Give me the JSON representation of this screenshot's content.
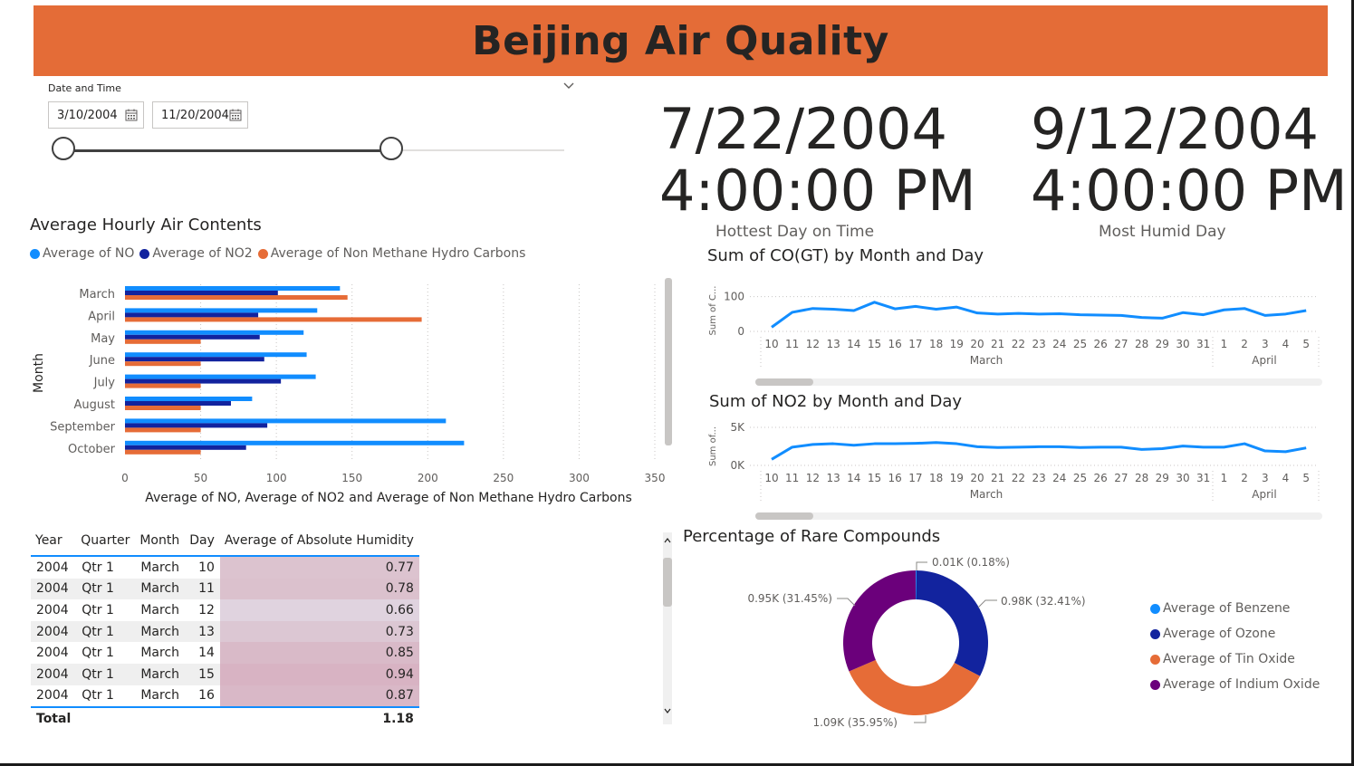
{
  "header": {
    "title": "Beijing Air Quality"
  },
  "slicer": {
    "title": "Date and Time",
    "start_date": "3/10/2004",
    "end_date": "11/20/2004",
    "range_start_fraction": 0.0,
    "range_end_fraction": 0.655
  },
  "cards": [
    {
      "date": "7/22/2004",
      "time": "4:00:00 PM",
      "label": "Hottest Day on Time"
    },
    {
      "date": "9/12/2004",
      "time": "4:00:00 PM",
      "label": "Most Humid Day"
    }
  ],
  "colors": {
    "banner": "#E46C37",
    "no": "#118DFF",
    "no2": "#12239E",
    "nmhc": "#E66C37",
    "indium": "#6B007B"
  },
  "bar_chart": {
    "title": "Average Hourly Air Contents",
    "legend": [
      "Average of NO",
      "Average of NO2",
      "Average of Non Methane Hydro Carbons"
    ],
    "ylabel": "Month",
    "xlabel": "Average of NO, Average of NO2 and Average of Non Methane Hydro Carbons",
    "xticks": [
      "0",
      "50",
      "100",
      "150",
      "200",
      "250",
      "300",
      "350"
    ]
  },
  "co_chart": {
    "title": "Sum of CO(GT) by Month and Day",
    "ylabel": "Sum of C...",
    "yticks": [
      "100",
      "0"
    ],
    "days": [
      "10",
      "11",
      "12",
      "13",
      "14",
      "15",
      "16",
      "17",
      "18",
      "19",
      "20",
      "21",
      "22",
      "23",
      "24",
      "25",
      "26",
      "27",
      "28",
      "29",
      "30",
      "31",
      "1",
      "2",
      "3",
      "4",
      "5"
    ],
    "months": [
      "March",
      "April"
    ]
  },
  "no2_chart": {
    "title": "Sum of NO2 by Month and Day",
    "ylabel": "Sum of...",
    "yticks": [
      "5K",
      "0K"
    ],
    "days": [
      "10",
      "11",
      "12",
      "13",
      "14",
      "15",
      "16",
      "17",
      "18",
      "19",
      "20",
      "21",
      "22",
      "23",
      "24",
      "25",
      "26",
      "27",
      "28",
      "29",
      "30",
      "31",
      "1",
      "2",
      "3",
      "4",
      "5"
    ],
    "months": [
      "March",
      "April"
    ]
  },
  "matrix": {
    "headers": [
      "Year",
      "Quarter",
      "Month",
      "Day",
      "Average of Absolute Humidity"
    ],
    "rows": [
      [
        "2004",
        "Qtr 1",
        "March",
        "10",
        "0.77"
      ],
      [
        "2004",
        "Qtr 1",
        "March",
        "11",
        "0.78"
      ],
      [
        "2004",
        "Qtr 1",
        "March",
        "12",
        "0.66"
      ],
      [
        "2004",
        "Qtr 1",
        "March",
        "13",
        "0.73"
      ],
      [
        "2004",
        "Qtr 1",
        "March",
        "14",
        "0.85"
      ],
      [
        "2004",
        "Qtr 1",
        "March",
        "15",
        "0.94"
      ],
      [
        "2004",
        "Qtr 1",
        "March",
        "16",
        "0.87"
      ]
    ],
    "total_label": "Total",
    "total_value": "1.18"
  },
  "donut": {
    "title": "Percentage of Rare Compounds",
    "legend": [
      "Average of Benzene",
      "Average of Ozone",
      "Average of Tin Oxide",
      "Average of Indium Oxide"
    ],
    "labels": [
      "0.01K (0.18%)",
      "0.98K (32.41%)",
      "1.09K (35.95%)",
      "0.95K (31.45%)"
    ]
  },
  "chart_data": [
    {
      "type": "bar",
      "title": "Average Hourly Air Contents",
      "orientation": "horizontal",
      "categories": [
        "March",
        "April",
        "May",
        "June",
        "July",
        "August",
        "September",
        "October"
      ],
      "series": [
        {
          "name": "Average of NO",
          "values": [
            142,
            127,
            118,
            120,
            126,
            84,
            212,
            224
          ]
        },
        {
          "name": "Average of NO2",
          "values": [
            101,
            88,
            89,
            92,
            103,
            70,
            94,
            80
          ]
        },
        {
          "name": "Average of Non Methane Hydro Carbons",
          "values": [
            147,
            196,
            50,
            50,
            50,
            50,
            50,
            50
          ]
        }
      ],
      "xlim": [
        0,
        350
      ],
      "xlabel": "Average of NO, Average of NO2 and Average of Non Methane Hydro Carbons",
      "ylabel": "Month"
    },
    {
      "type": "line",
      "title": "Sum of CO(GT) by Month and Day",
      "x": [
        "10",
        "11",
        "12",
        "13",
        "14",
        "15",
        "16",
        "17",
        "18",
        "19",
        "20",
        "21",
        "22",
        "23",
        "24",
        "25",
        "26",
        "27",
        "28",
        "29",
        "30",
        "31",
        "1",
        "2",
        "3",
        "4",
        "5"
      ],
      "values": [
        12,
        55,
        66,
        64,
        60,
        84,
        65,
        72,
        64,
        70,
        53,
        50,
        52,
        50,
        51,
        48,
        47,
        46,
        40,
        38,
        54,
        48,
        62,
        66,
        46,
        50,
        60
      ],
      "ylim": [
        0,
        120
      ]
    },
    {
      "type": "line",
      "title": "Sum of NO2 by Month and Day",
      "x": [
        "10",
        "11",
        "12",
        "13",
        "14",
        "15",
        "16",
        "17",
        "18",
        "19",
        "20",
        "21",
        "22",
        "23",
        "24",
        "25",
        "26",
        "27",
        "28",
        "29",
        "30",
        "31",
        "1",
        "2",
        "3",
        "4",
        "5"
      ],
      "values": [
        800,
        2400,
        2750,
        2850,
        2650,
        2850,
        2850,
        2900,
        3000,
        2850,
        2450,
        2350,
        2400,
        2450,
        2450,
        2350,
        2400,
        2400,
        2100,
        2200,
        2550,
        2400,
        2400,
        2850,
        1900,
        1800,
        2300
      ],
      "ylim": [
        0,
        5000
      ]
    },
    {
      "type": "pie",
      "title": "Percentage of Rare Compounds",
      "categories": [
        "Average of Benzene",
        "Average of Ozone",
        "Average of Tin Oxide",
        "Average of Indium Oxide"
      ],
      "values": [
        0.18,
        32.41,
        35.95,
        31.45
      ],
      "colors": [
        "#118DFF",
        "#12239E",
        "#E66C37",
        "#6B007B"
      ]
    }
  ]
}
